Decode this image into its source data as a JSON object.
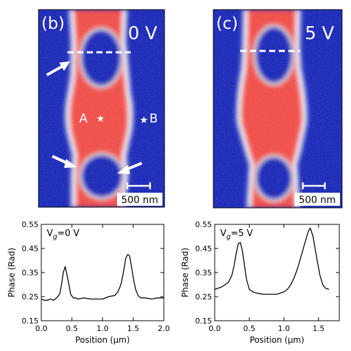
{
  "panels": {
    "b": {
      "label": "(b)",
      "voltage": "0 V",
      "point_a": "A",
      "point_b": "B",
      "scalebar": "500 nm"
    },
    "c": {
      "label": "(c)",
      "voltage": "5 V",
      "scalebar": "500 nm"
    }
  },
  "colors": {
    "map_low": "#1c2ab8",
    "map_high": "#f0504a",
    "map_transition": "#e8e8f2",
    "annotation": "#ffffff",
    "plot_line": "#000000"
  },
  "chart_data": [
    {
      "type": "line",
      "annotation_prefix": "V",
      "annotation_sub": "g",
      "annotation_suffix": "=0 V",
      "xlabel": "Position (μm)",
      "ylabel": "Phase (Rad)",
      "xlim": [
        0.0,
        2.0
      ],
      "ylim": [
        0.15,
        0.55
      ],
      "xticks": [
        "0.0",
        "0.5",
        "1.0",
        "1.5",
        "2.0"
      ],
      "yticks": [
        "0.15",
        "0.25",
        "0.35",
        "0.45",
        "0.55"
      ],
      "x": [
        0.0,
        0.05,
        0.1,
        0.15,
        0.2,
        0.25,
        0.3,
        0.33,
        0.36,
        0.39,
        0.42,
        0.45,
        0.48,
        0.52,
        0.56,
        0.6,
        0.7,
        0.8,
        0.9,
        1.0,
        1.1,
        1.2,
        1.25,
        1.3,
        1.34,
        1.38,
        1.41,
        1.44,
        1.47,
        1.5,
        1.54,
        1.58,
        1.62,
        1.7,
        1.8,
        1.9,
        2.0
      ],
      "y": [
        0.24,
        0.235,
        0.235,
        0.24,
        0.235,
        0.245,
        0.26,
        0.3,
        0.35,
        0.375,
        0.34,
        0.3,
        0.26,
        0.245,
        0.245,
        0.24,
        0.245,
        0.24,
        0.24,
        0.24,
        0.25,
        0.255,
        0.27,
        0.3,
        0.35,
        0.41,
        0.425,
        0.42,
        0.38,
        0.33,
        0.28,
        0.255,
        0.245,
        0.245,
        0.24,
        0.245,
        0.245
      ]
    },
    {
      "type": "line",
      "annotation_prefix": "V",
      "annotation_sub": "g",
      "annotation_suffix": "=5 V",
      "xlabel": "Position (μm)",
      "ylabel": "Phase (Rad)",
      "xlim": [
        0.0,
        1.8
      ],
      "ylim": [
        0.15,
        0.55
      ],
      "xticks": [
        "0.0",
        "0.5",
        "1.0",
        "1.5"
      ],
      "yticks": [
        "0.15",
        "0.25",
        "0.35",
        "0.45",
        "0.55"
      ],
      "x": [
        0.0,
        0.05,
        0.1,
        0.15,
        0.2,
        0.25,
        0.28,
        0.31,
        0.34,
        0.37,
        0.4,
        0.43,
        0.46,
        0.5,
        0.55,
        0.6,
        0.7,
        0.8,
        0.9,
        1.0,
        1.05,
        1.1,
        1.15,
        1.2,
        1.25,
        1.3,
        1.35,
        1.38,
        1.42,
        1.45,
        1.48,
        1.52,
        1.56,
        1.6,
        1.65
      ],
      "y": [
        0.28,
        0.285,
        0.29,
        0.3,
        0.31,
        0.34,
        0.38,
        0.43,
        0.47,
        0.475,
        0.44,
        0.38,
        0.32,
        0.28,
        0.27,
        0.265,
        0.26,
        0.26,
        0.26,
        0.27,
        0.28,
        0.3,
        0.33,
        0.37,
        0.42,
        0.47,
        0.52,
        0.535,
        0.5,
        0.45,
        0.4,
        0.34,
        0.3,
        0.285,
        0.28
      ]
    }
  ]
}
